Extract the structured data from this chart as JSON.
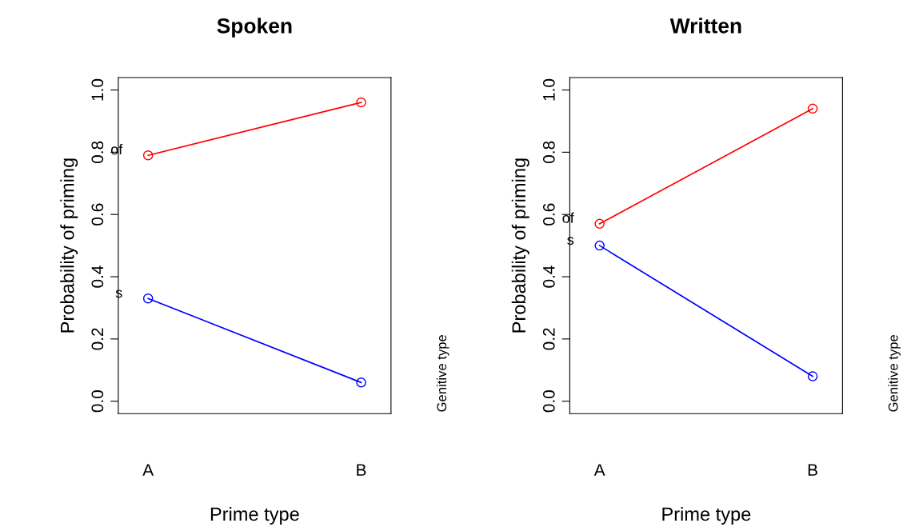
{
  "chart_data": [
    {
      "type": "line",
      "title": "Spoken",
      "xlabel": "Prime type",
      "ylabel": "Probability of priming",
      "legend_title": "Genitive type",
      "categories": [
        "A",
        "B"
      ],
      "marker": "circle",
      "line_style": "solid",
      "grid": false,
      "legend": false,
      "ylim": [
        -0.04,
        1.04
      ],
      "yticks": [
        {
          "value": 0,
          "label": "0.0"
        },
        {
          "value": 0.2,
          "label": "0.2"
        },
        {
          "value": 0.4,
          "label": "0.4"
        },
        {
          "value": 0.6,
          "label": "0.6"
        },
        {
          "value": 0.8,
          "label": "0.8"
        },
        {
          "value": 1,
          "label": "1.0"
        }
      ],
      "series": [
        {
          "name": "of",
          "color": "#ff0000",
          "values": [
            0.79,
            0.96
          ]
        },
        {
          "name": "s",
          "color": "#0000ff",
          "values": [
            0.33,
            0.06
          ]
        }
      ]
    },
    {
      "type": "line",
      "title": "Written",
      "xlabel": "Prime type",
      "ylabel": "Probability of priming",
      "legend_title": "Genitive type",
      "categories": [
        "A",
        "B"
      ],
      "marker": "circle",
      "line_style": "solid",
      "grid": false,
      "legend": false,
      "ylim": [
        -0.04,
        1.04
      ],
      "yticks": [
        {
          "value": 0,
          "label": "0.0"
        },
        {
          "value": 0.2,
          "label": "0.2"
        },
        {
          "value": 0.4,
          "label": "0.4"
        },
        {
          "value": 0.6,
          "label": "0.6"
        },
        {
          "value": 0.8,
          "label": "0.8"
        },
        {
          "value": 1,
          "label": "1.0"
        }
      ],
      "series": [
        {
          "name": "of",
          "color": "#ff0000",
          "values": [
            0.57,
            0.94
          ]
        },
        {
          "name": "s",
          "color": "#0000ff",
          "values": [
            0.5,
            0.08
          ]
        }
      ]
    }
  ]
}
